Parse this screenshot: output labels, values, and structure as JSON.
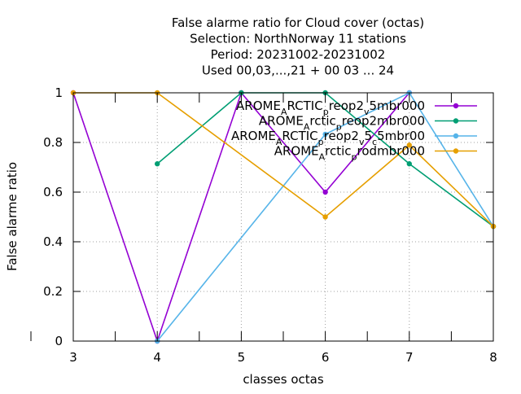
{
  "chart_data": {
    "type": "line",
    "title_lines": [
      "False alarme ratio  for Cloud cover (octas)",
      "Selection: NorthNorway     11 stations",
      "Period: 20231002-20231002",
      "Used  00,03,...,21  + 00 03 ... 24"
    ],
    "xlabel": "classes octas",
    "ylabel": "False alarme ratio",
    "xlim": [
      3,
      8
    ],
    "ylim": [
      0,
      1
    ],
    "x_ticks": [
      3,
      4,
      5,
      6,
      7,
      8
    ],
    "y_ticks": [
      0,
      0.2,
      0.4,
      0.6,
      0.8,
      1
    ],
    "y_tick_labels": [
      "0",
      "0.2",
      "0.4",
      "0.6",
      "0.8",
      "1"
    ],
    "grid": true,
    "legend_position": "top-right",
    "series": [
      {
        "name": "AROME_ARCTIC_preop2_v_5mbr000",
        "legend_segments": [
          [
            "AROME",
            ""
          ],
          [
            "A",
            "sub"
          ],
          [
            "RCTIC",
            ""
          ],
          [
            "p",
            "sub"
          ],
          [
            "reop2",
            ""
          ],
          [
            "v",
            "sub"
          ],
          [
            "5mbr000",
            ""
          ]
        ],
        "color": "#9400d3",
        "x": [
          3,
          4,
          5,
          6,
          7
        ],
        "y": [
          1.0,
          0.0,
          1.0,
          0.6,
          1.0
        ]
      },
      {
        "name": "AROME_Arctic_preop2mbr000",
        "legend_segments": [
          [
            "AROME",
            ""
          ],
          [
            "A",
            "sub"
          ],
          [
            "rctic",
            ""
          ],
          [
            "p",
            "sub"
          ],
          [
            "reop2mbr000",
            ""
          ]
        ],
        "color": "#009e73",
        "x": [
          4,
          5,
          6,
          7,
          8
        ],
        "y": [
          0.714,
          1.0,
          1.0,
          0.714,
          0.462
        ]
      },
      {
        "name": "AROME_ARCTIC_preop2_v_5_c_5mbr00",
        "legend_segments": [
          [
            "AROME",
            ""
          ],
          [
            "A",
            "sub"
          ],
          [
            "RCTIC",
            ""
          ],
          [
            "p",
            "sub"
          ],
          [
            "reop2",
            ""
          ],
          [
            "v",
            "sub"
          ],
          [
            "5",
            ""
          ],
          [
            "c",
            "sub"
          ],
          [
            "5mbr00",
            ""
          ]
        ],
        "color": "#56b4e9",
        "x": [
          4,
          6,
          7,
          8
        ],
        "y": [
          0.0,
          0.833,
          1.0,
          0.462
        ]
      },
      {
        "name": "AROME_Arctic_prodmbr000",
        "legend_segments": [
          [
            "AROME",
            ""
          ],
          [
            "A",
            "sub"
          ],
          [
            "rctic",
            ""
          ],
          [
            "p",
            "sub"
          ],
          [
            "rodmbr000",
            ""
          ]
        ],
        "color": "#e69f00",
        "x": [
          3,
          4,
          6,
          7,
          8
        ],
        "y": [
          1.0,
          1.0,
          0.5,
          0.789,
          0.462
        ]
      }
    ]
  }
}
